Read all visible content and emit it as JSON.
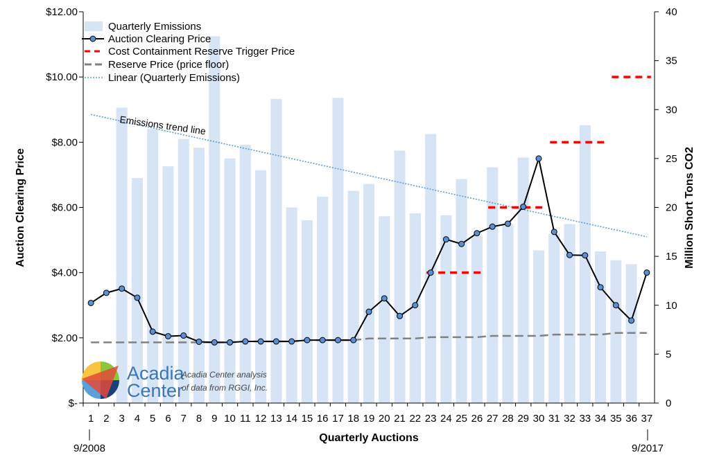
{
  "chart_data": {
    "type": "bar+line",
    "xlabel": "Quarterly Auctions",
    "ylabel_left": "Auction Clearing Price",
    "ylabel_right": "Million Short Tons CO2",
    "y_left_ticks": [
      "$-",
      "$2.00",
      "$4.00",
      "$6.00",
      "$8.00",
      "$10.00",
      "$12.00"
    ],
    "y_left_lim": [
      0,
      12
    ],
    "y_right_ticks": [
      "0",
      "5",
      "10",
      "15",
      "20",
      "25",
      "30",
      "35",
      "40"
    ],
    "y_right_lim": [
      0,
      40
    ],
    "categories": [
      "1",
      "2",
      "3",
      "4",
      "5",
      "6",
      "7",
      "8",
      "9",
      "10",
      "11",
      "12",
      "13",
      "14",
      "15",
      "16",
      "17",
      "18",
      "19",
      "20",
      "21",
      "22",
      "23",
      "24",
      "25",
      "26",
      "27",
      "28",
      "29",
      "30",
      "31",
      "32",
      "33",
      "34",
      "35",
      "36",
      "37"
    ],
    "start_date_label": "9/2008",
    "end_date_label": "9/2017",
    "legend": [
      "Quarterly Emissions",
      "Auction Clearing Price",
      "Cost Containment Reserve Trigger Price",
      "Reserve Price (price floor)",
      "Linear (Quarterly Emissions)"
    ],
    "annotation": "Emissions trend line",
    "series": {
      "emissions": [
        null,
        null,
        30.2,
        23.0,
        28.0,
        24.2,
        27.0,
        26.1,
        37.5,
        25.0,
        26.4,
        23.8,
        31.1,
        20.0,
        18.7,
        21.1,
        31.2,
        21.7,
        22.4,
        19.1,
        25.8,
        19.4,
        27.5,
        19.2,
        22.9,
        17.1,
        24.1,
        18.3,
        25.1,
        15.6,
        17.3,
        18.3,
        28.4,
        15.5,
        14.6,
        14.2,
        null
      ],
      "clearing_price": [
        3.07,
        3.38,
        3.51,
        3.23,
        2.19,
        2.05,
        2.07,
        1.88,
        1.86,
        1.86,
        1.89,
        1.89,
        1.89,
        1.89,
        1.93,
        1.93,
        1.93,
        1.93,
        2.8,
        3.21,
        2.67,
        3.0,
        4.0,
        5.02,
        4.88,
        5.21,
        5.41,
        5.5,
        6.02,
        7.5,
        5.25,
        4.54,
        4.53,
        3.55,
        3.0,
        2.53,
        4.0
      ],
      "reserve_price": [
        1.86,
        1.86,
        1.86,
        1.86,
        1.86,
        1.86,
        1.86,
        1.86,
        1.86,
        1.86,
        1.89,
        1.89,
        1.89,
        1.89,
        1.93,
        1.93,
        1.93,
        1.93,
        1.98,
        1.98,
        1.98,
        1.98,
        2.02,
        2.02,
        2.02,
        2.02,
        2.06,
        2.06,
        2.06,
        2.06,
        2.1,
        2.1,
        2.1,
        2.1,
        2.15,
        2.15,
        2.15
      ],
      "ccr_trigger": [
        {
          "from": 23,
          "to": 26,
          "value": 4.0
        },
        {
          "from": 27,
          "to": 30,
          "value": 6.0
        },
        {
          "from": 31,
          "to": 34,
          "value": 8.0
        },
        {
          "from": 35,
          "to": 37,
          "value": 10.0
        }
      ],
      "trend_emissions": {
        "start_x": 1,
        "start_value": 29.5,
        "end_x": 37,
        "end_value": 17.0
      }
    },
    "colors": {
      "emissions": "#d6e4f5",
      "clearing_price_line": "#000000",
      "clearing_price_marker": "#5b8fd4",
      "ccr_trigger": "#ff0000",
      "reserve_price": "#808080",
      "trend": "#5b9bd5"
    },
    "legend_placement": "top-left",
    "grid": false
  },
  "logo": {
    "word1": "Acadia",
    "word2": "Center",
    "note_line1": "Acadia Center analysis",
    "note_line2": "of data from RGGI, Inc."
  }
}
